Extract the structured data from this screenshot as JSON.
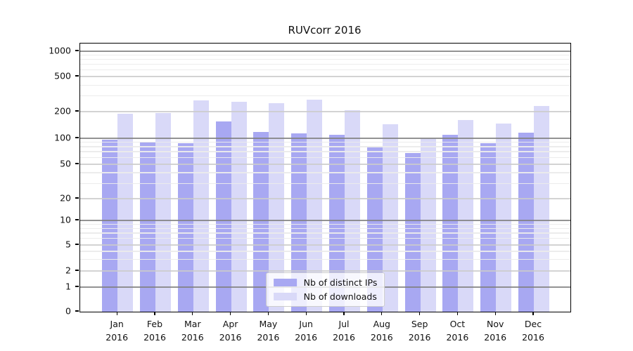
{
  "chart_data": {
    "type": "bar",
    "title": "RUVcorr 2016",
    "yscale": "symlog",
    "grid": true,
    "legend_position": "lower center",
    "ylim": [
      0,
      1250
    ],
    "yticks": [
      0,
      1,
      2,
      5,
      10,
      20,
      50,
      100,
      200,
      500,
      1000
    ],
    "categories": [
      "Jan 2016",
      "Feb 2016",
      "Mar 2016",
      "Apr 2016",
      "May 2016",
      "Jun 2016",
      "Jul 2016",
      "Aug 2016",
      "Sep 2016",
      "Oct 2016",
      "Nov 2016",
      "Dec 2016"
    ],
    "series": [
      {
        "name": "Nb of distinct IPs",
        "color": "#a8a8f2",
        "values": [
          96,
          91,
          88,
          156,
          119,
          114,
          110,
          78,
          68,
          110,
          88,
          116
        ]
      },
      {
        "name": "Nb of downloads",
        "color": "#d9d9f8",
        "values": [
          189,
          192,
          267,
          258,
          248,
          272,
          206,
          143,
          101,
          162,
          146,
          232
        ]
      }
    ]
  }
}
